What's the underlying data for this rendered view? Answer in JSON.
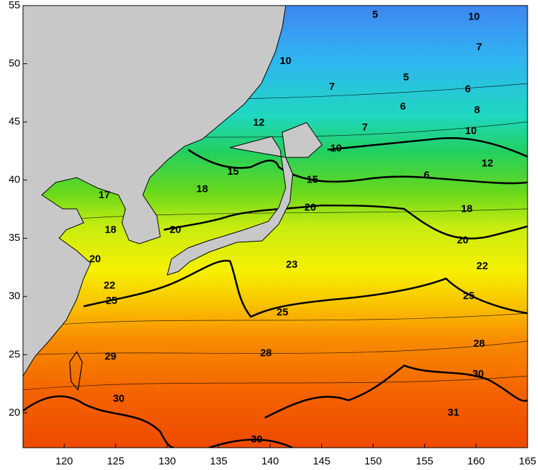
{
  "map": {
    "xlim": [
      116,
      165
    ],
    "ylim": [
      17,
      55
    ],
    "xticks": [
      120,
      125,
      130,
      135,
      140,
      145,
      150,
      155,
      160,
      165
    ],
    "yticks": [
      20,
      25,
      30,
      35,
      40,
      45,
      50,
      55
    ],
    "contour_labels": [
      {
        "text": "5",
        "lon": 150.2,
        "lat": 54.2
      },
      {
        "text": "10",
        "lon": 159.8,
        "lat": 54.0
      },
      {
        "text": "7",
        "lon": 160.3,
        "lat": 51.4
      },
      {
        "text": "10",
        "lon": 141.5,
        "lat": 50.2
      },
      {
        "text": "7",
        "lon": 146.0,
        "lat": 48.0
      },
      {
        "text": "5",
        "lon": 153.2,
        "lat": 48.8
      },
      {
        "text": "6",
        "lon": 152.9,
        "lat": 46.3
      },
      {
        "text": "6",
        "lon": 159.2,
        "lat": 47.8
      },
      {
        "text": "8",
        "lon": 160.1,
        "lat": 46.0
      },
      {
        "text": "7",
        "lon": 149.2,
        "lat": 44.5
      },
      {
        "text": "12",
        "lon": 138.9,
        "lat": 44.9
      },
      {
        "text": "10",
        "lon": 146.4,
        "lat": 42.7
      },
      {
        "text": "10",
        "lon": 159.5,
        "lat": 44.2
      },
      {
        "text": "12",
        "lon": 161.1,
        "lat": 41.4
      },
      {
        "text": "15",
        "lon": 136.4,
        "lat": 40.7
      },
      {
        "text": "15",
        "lon": 144.1,
        "lat": 40.0
      },
      {
        "text": "6",
        "lon": 155.2,
        "lat": 40.4
      },
      {
        "text": "18",
        "lon": 133.4,
        "lat": 39.2
      },
      {
        "text": "17",
        "lon": 123.9,
        "lat": 38.7
      },
      {
        "text": "18",
        "lon": 124.5,
        "lat": 35.7
      },
      {
        "text": "18",
        "lon": 159.1,
        "lat": 37.5
      },
      {
        "text": "20",
        "lon": 130.8,
        "lat": 35.7
      },
      {
        "text": "20",
        "lon": 143.9,
        "lat": 37.6
      },
      {
        "text": "20",
        "lon": 158.7,
        "lat": 34.8
      },
      {
        "text": "20",
        "lon": 123.0,
        "lat": 33.2
      },
      {
        "text": "22",
        "lon": 124.4,
        "lat": 30.9
      },
      {
        "text": "23",
        "lon": 142.1,
        "lat": 32.7
      },
      {
        "text": "22",
        "lon": 160.6,
        "lat": 32.6
      },
      {
        "text": "25",
        "lon": 124.6,
        "lat": 29.6
      },
      {
        "text": "25",
        "lon": 141.2,
        "lat": 28.6
      },
      {
        "text": "25",
        "lon": 159.3,
        "lat": 30.0
      },
      {
        "text": "28",
        "lon": 139.6,
        "lat": 25.1
      },
      {
        "text": "28",
        "lon": 160.3,
        "lat": 25.9
      },
      {
        "text": "29",
        "lon": 124.5,
        "lat": 24.8
      },
      {
        "text": "30",
        "lon": 160.2,
        "lat": 23.3
      },
      {
        "text": "30",
        "lon": 125.3,
        "lat": 21.2
      },
      {
        "text": "31",
        "lon": 157.8,
        "lat": 20.0
      },
      {
        "text": "30",
        "lon": 138.7,
        "lat": 17.7
      }
    ]
  }
}
